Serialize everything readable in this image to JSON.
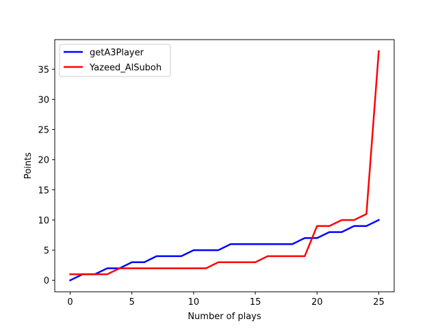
{
  "chart_data": {
    "type": "line",
    "title": "",
    "xlabel": "Number of plays",
    "ylabel": "Points",
    "xlim": [
      -1.25,
      26.25
    ],
    "ylim": [
      -1.9,
      39.9
    ],
    "xticks": [
      0,
      5,
      10,
      15,
      20,
      25
    ],
    "yticks": [
      0,
      5,
      10,
      15,
      20,
      25,
      30,
      35
    ],
    "grid": false,
    "legend_position": "upper-left",
    "x": [
      0,
      1,
      2,
      3,
      4,
      5,
      6,
      7,
      8,
      9,
      10,
      11,
      12,
      13,
      14,
      15,
      16,
      17,
      18,
      19,
      20,
      21,
      22,
      23,
      24,
      25
    ],
    "series": [
      {
        "name": "getA3Player",
        "color": "#0000ff",
        "values": [
          0,
          1,
          1,
          2,
          2,
          3,
          3,
          4,
          4,
          4,
          5,
          5,
          5,
          6,
          6,
          6,
          6,
          6,
          6,
          7,
          7,
          8,
          8,
          9,
          9,
          10
        ]
      },
      {
        "name": "Yazeed_AlSuboh",
        "color": "#ff0000",
        "values": [
          1,
          1,
          1,
          1,
          2,
          2,
          2,
          2,
          2,
          2,
          2,
          2,
          3,
          3,
          3,
          3,
          4,
          4,
          4,
          4,
          9,
          9,
          10,
          10,
          11,
          38
        ]
      }
    ]
  }
}
